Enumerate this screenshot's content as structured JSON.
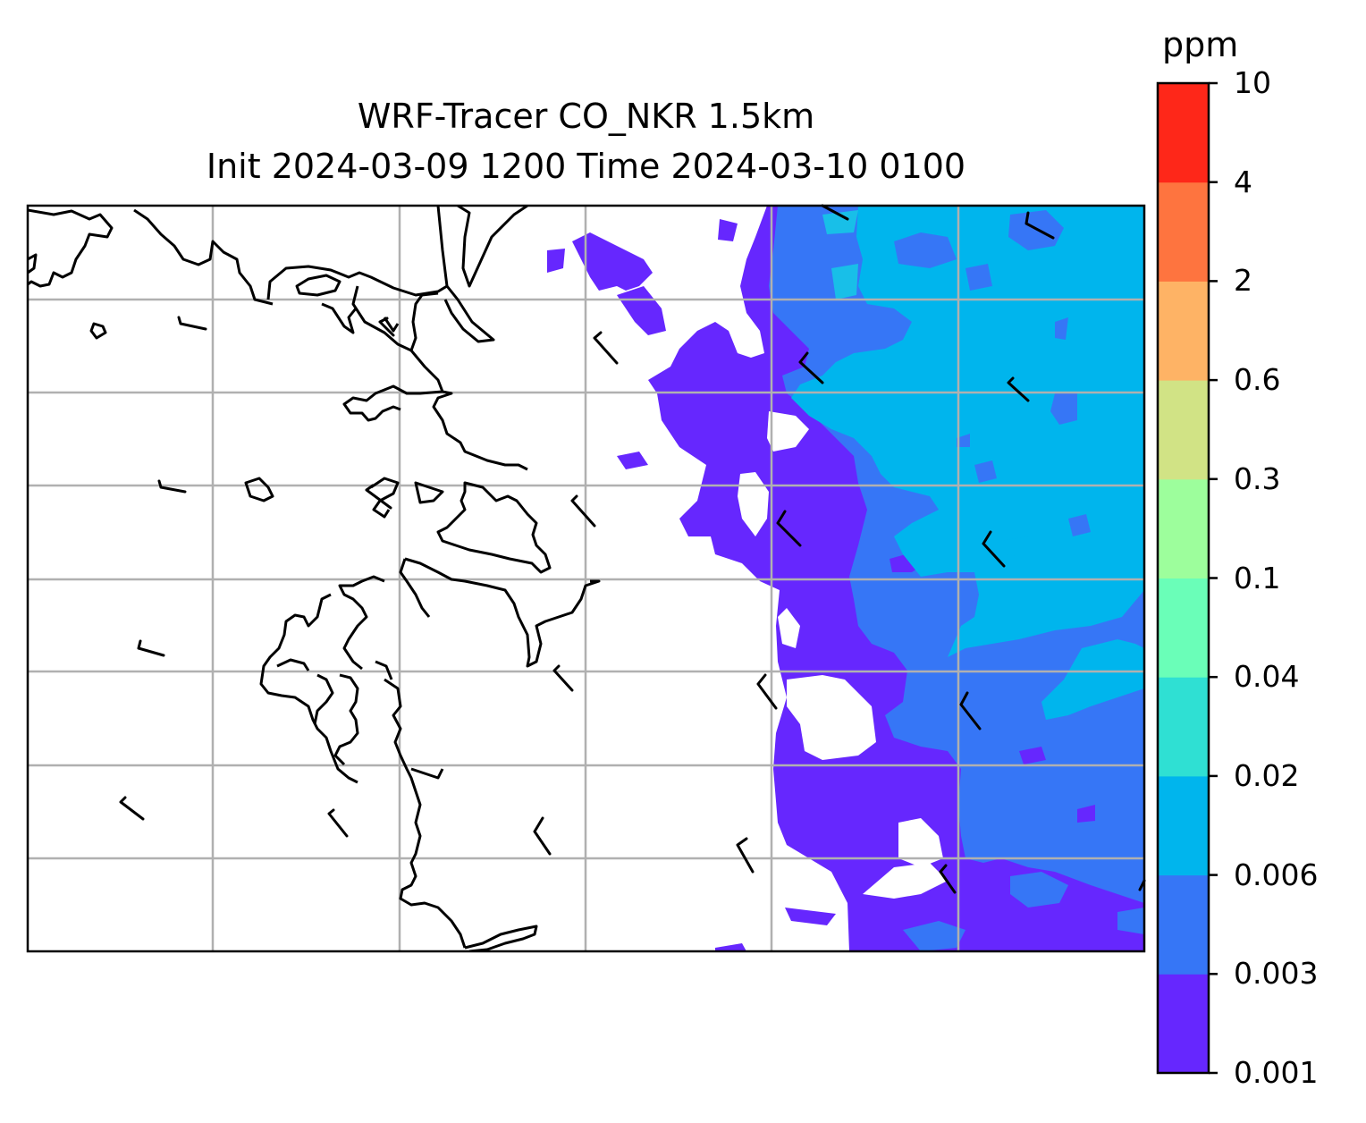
{
  "title": {
    "line1": "WRF-Tracer CO_NKR 1.5km",
    "line2": "Init 2024-03-09 1200 Time 2024-03-10 0100"
  },
  "colorbar": {
    "unit": "ppm",
    "levels": [
      "0.001",
      "0.003",
      "0.006",
      "0.02",
      "0.04",
      "0.1",
      "0.3",
      "0.6",
      "2",
      "4",
      "10"
    ],
    "colors": [
      "#6627fe",
      "#3676f6",
      "#00b5ed",
      "#2fe0d3",
      "#6afeb8",
      "#9dfe9c",
      "#d1e385",
      "#feb365",
      "#fe743f",
      "#fe2719"
    ]
  },
  "map": {
    "gridlines": true,
    "overlays": [
      "tracer-concentration-fill",
      "coastline",
      "wind-barbs"
    ]
  }
}
